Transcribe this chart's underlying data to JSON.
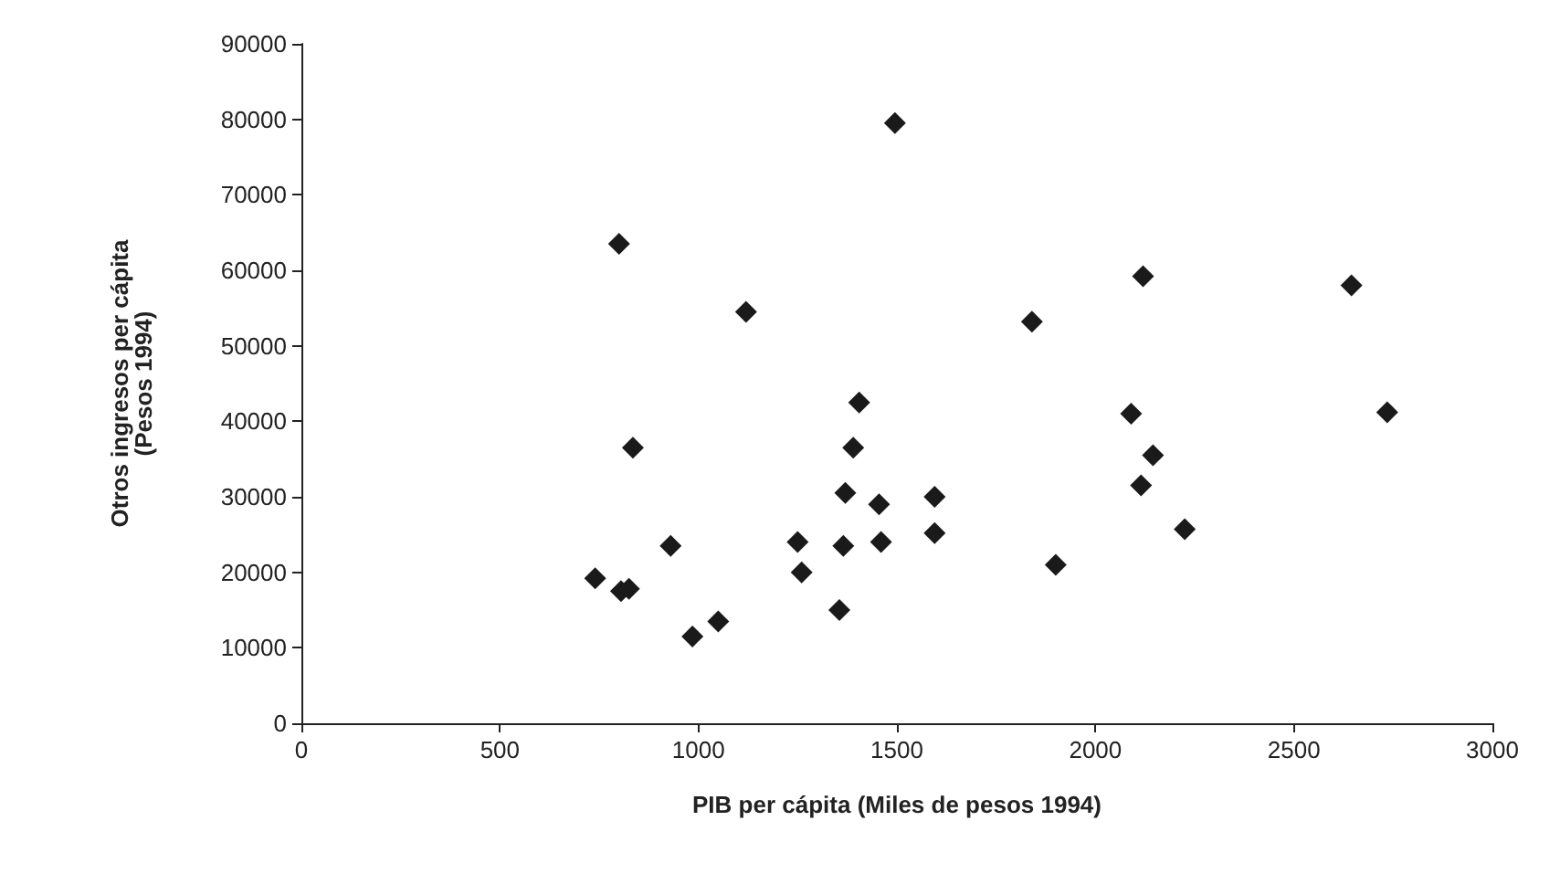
{
  "chart_data": {
    "type": "scatter",
    "xlabel": "PIB per cápita (Miles de pesos 1994)",
    "ylabel": "Otros ingresos per cápita\n(Pesos 1994)",
    "x": [
      740,
      805,
      825,
      800,
      835,
      930,
      985,
      1050,
      1120,
      1250,
      1260,
      1355,
      1365,
      1370,
      1390,
      1405,
      1455,
      1460,
      1495,
      1595,
      1595,
      1840,
      1900,
      2090,
      2115,
      2120,
      2145,
      2225,
      2645,
      2735
    ],
    "values": [
      19200,
      17500,
      17800,
      63500,
      36500,
      23500,
      11500,
      13500,
      54500,
      24000,
      20000,
      15000,
      23500,
      30500,
      36500,
      42500,
      29000,
      24000,
      79500,
      30000,
      25200,
      53200,
      21000,
      41000,
      31500,
      59200,
      35500,
      25700,
      58000,
      41200
    ],
    "color": "#1a1a1a",
    "marker": "diamond",
    "grid": false,
    "xlim": [
      0,
      3000
    ],
    "xticks": [
      0,
      500,
      1000,
      1500,
      2000,
      2500,
      3000
    ],
    "ylim": [
      0,
      90000
    ],
    "yticks": [
      0,
      10000,
      20000,
      30000,
      40000,
      50000,
      60000,
      70000,
      80000,
      90000
    ]
  }
}
